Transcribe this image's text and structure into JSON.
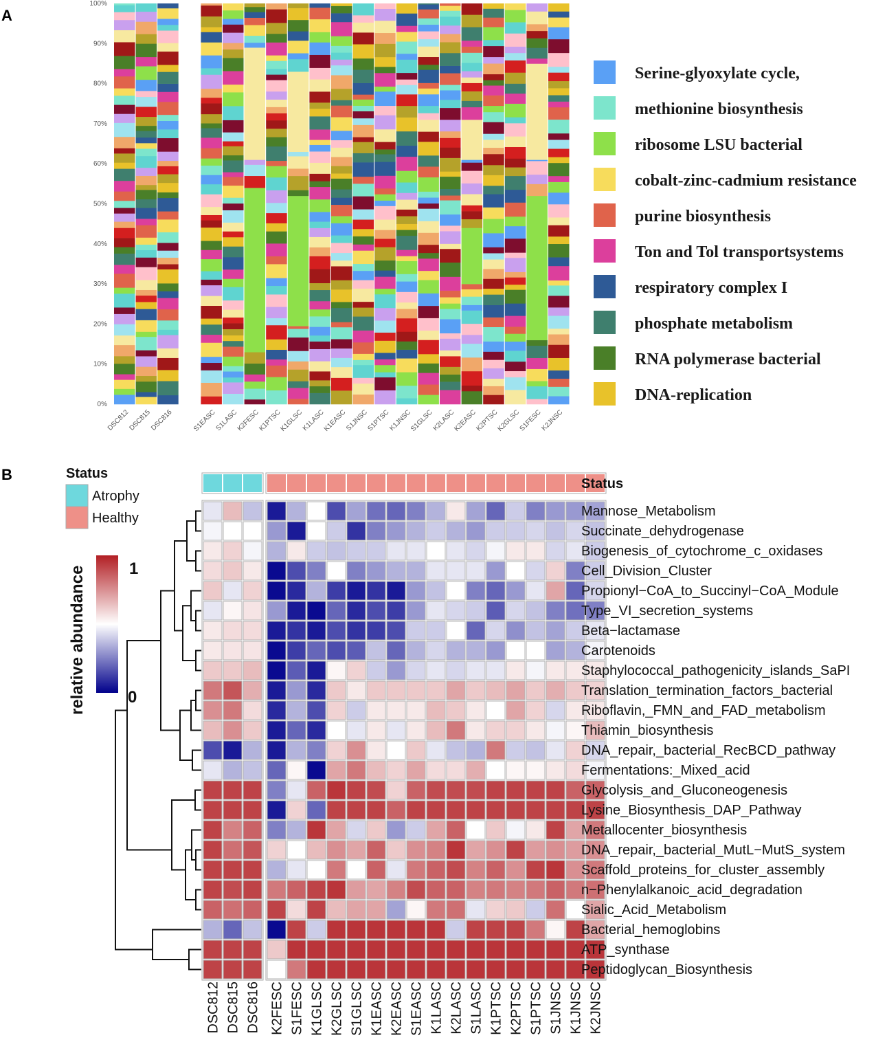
{
  "chart_data": [
    {
      "type": "bar",
      "panel_label": "A",
      "stacked": true,
      "ylim": [
        0,
        100
      ],
      "yticks": [
        "0%",
        "10%",
        "20%",
        "30%",
        "40%",
        "50%",
        "60%",
        "70%",
        "80%",
        "90%",
        "100%"
      ],
      "categories": [
        "DSC812",
        "DSC815",
        "DSC816",
        "",
        "S1EASC",
        "S1LASC",
        "K2FESC",
        "K1PTSC",
        "K1GLSC",
        "K1LASC",
        "K1EASC",
        "S1JNSC",
        "S1PTSC",
        "K1JNSC",
        "S1GLSC",
        "K2LASC",
        "K2EASC",
        "K2PTSC",
        "K2GLSC",
        "S1FESC",
        "K2JNSC"
      ],
      "legend": [
        {
          "label": "Serine-glyoxylate cycle,",
          "color": "#5aa0f5"
        },
        {
          "label": "methionine biosynthesis",
          "color": "#7de5cc"
        },
        {
          "label": "ribosome LSU bacterial",
          "color": "#8ee04a"
        },
        {
          "label": "cobalt-zinc-cadmium resistance",
          "color": "#f7dc5c"
        },
        {
          "label": "purine biosynthesis",
          "color": "#e0634b"
        },
        {
          "label": "Ton and Tol transportsystems",
          "color": "#dc3f9c"
        },
        {
          "label": "respiratory complex I",
          "color": "#2e5a96"
        },
        {
          "label": "phosphate metabolism",
          "color": "#3f7f6e"
        },
        {
          "label": "RNA polymerase bacterial",
          "color": "#4a7f28"
        },
        {
          "label": "DNA-replication",
          "color": "#e8c22a"
        }
      ],
      "palette": [
        "#5aa0f5",
        "#7de5cc",
        "#8ee04a",
        "#f7dc5c",
        "#e0634b",
        "#dc3f9c",
        "#2e5a96",
        "#3f7f6e",
        "#4a7f28",
        "#e8c22a",
        "#b5a22a",
        "#a01818",
        "#d41f1f",
        "#f0a86a",
        "#f7e9a0",
        "#9fe3ef",
        "#c9a0ee",
        "#ffc0cb",
        "#7e0d2e",
        "#5fd4d0"
      ],
      "big_segments": [
        {
          "sample": "K2FESC",
          "color": "#8ee04a",
          "from": 13,
          "to": 54
        },
        {
          "sample": "K2FESC",
          "color": "#f7e9a0",
          "from": 61,
          "to": 89
        },
        {
          "sample": "K1GLSC",
          "color": "#8ee04a",
          "from": 19.5,
          "to": 52
        },
        {
          "sample": "K1GLSC",
          "color": "#f7e9a0",
          "from": 63,
          "to": 83
        },
        {
          "sample": "S1FESC",
          "color": "#8ee04a",
          "from": 16,
          "to": 52
        },
        {
          "sample": "S1FESC",
          "color": "#f7e9a0",
          "from": 61,
          "to": 85
        },
        {
          "sample": "K2EASC",
          "color": "#8ee04a",
          "from": 30,
          "to": 44
        },
        {
          "sample": "K2EASC",
          "color": "#f7e9a0",
          "from": 61,
          "to": 71
        }
      ]
    },
    {
      "type": "heatmap",
      "panel_label": "B",
      "status_title": "Status",
      "status_legend": [
        {
          "label": "Atrophy",
          "color": "#6ed8dd"
        },
        {
          "label": "Healthy",
          "color": "#ee9088"
        }
      ],
      "colorbar": {
        "title": "relative abundance",
        "max_label": "1",
        "min_label": "0",
        "low_color": "#00008b",
        "mid_color": "#ffffff",
        "high_color": "#b21f24"
      },
      "columns": [
        "DSC812",
        "DSC815",
        "DSC816",
        "K2FESC",
        "S1FESC",
        "K1GLSC",
        "K2GLSC",
        "S1GLSC",
        "K1EASC",
        "K2EASC",
        "S1EASC",
        "K1LASC",
        "K2LASC",
        "S1LASC",
        "K1PTSC",
        "K2PTSC",
        "S1PTSC",
        "S1JNSC",
        "K1JNSC",
        "K2JNSC"
      ],
      "atrophy_count": 3,
      "rows": [
        "Mannose_Metabolism",
        "Succinate_dehydrogenase",
        "Biogenesis_of_cytochrome_c_oxidases",
        "Cell_Division_Cluster",
        "Propionyl−CoA_to_Succinyl−CoA_Module",
        "Type_VI_secretion_systems",
        "Beta−lactamase",
        "Carotenoids",
        "Staphylococcal_pathogenicity_islands_SaPI",
        "Translation_termination_factors_bacterial",
        "Riboflavin,_FMN_and_FAD_metabolism",
        "Thiamin_biosynthesis",
        "DNA_repair,_bacterial_RecBCD_pathway",
        "Fermentations:_Mixed_acid",
        "Glycolysis_and_Gluconeogenesis",
        "Lysine_Biosynthesis_DAP_Pathway",
        "Metallocenter_biosynthesis",
        "DNA_repair,_bacterial_MutL−MutS_system",
        "Scaffold_proteins_for_cluster_assembly",
        "n−Phenylalkanoic_acid_degradation",
        "Sialic_Acid_Metabolism",
        "Bacterial_hemoglobins",
        "ATP_synthase",
        "Peptidoglycan_Biosynthesis"
      ],
      "values": [
        [
          0.45,
          0.65,
          0.38,
          0.05,
          0.35,
          0.5,
          0.15,
          0.32,
          0.22,
          0.2,
          0.25,
          0.35,
          0.55,
          0.32,
          0.2,
          0.4,
          0.25,
          0.3,
          0.3,
          0.32
        ],
        [
          0.48,
          0.5,
          0.5,
          0.3,
          0.05,
          0.5,
          0.4,
          0.1,
          0.25,
          0.3,
          0.35,
          0.4,
          0.35,
          0.3,
          0.4,
          0.4,
          0.42,
          0.38,
          0.42,
          0.38
        ],
        [
          0.55,
          0.6,
          0.48,
          0.35,
          0.55,
          0.4,
          0.38,
          0.4,
          0.4,
          0.45,
          0.45,
          0.5,
          0.45,
          0.42,
          0.48,
          0.55,
          0.55,
          0.42,
          0.45,
          0.4
        ],
        [
          0.58,
          0.62,
          0.55,
          0.02,
          0.15,
          0.25,
          0.5,
          0.25,
          0.3,
          0.35,
          0.35,
          0.45,
          0.45,
          0.45,
          0.3,
          0.5,
          0.42,
          0.6,
          0.25,
          0.4
        ],
        [
          0.62,
          0.45,
          0.6,
          0.02,
          0.08,
          0.35,
          0.12,
          0.05,
          0.1,
          0.05,
          0.3,
          0.38,
          0.5,
          0.25,
          0.2,
          0.3,
          0.45,
          0.7,
          0.2,
          0.42
        ],
        [
          0.45,
          0.52,
          0.56,
          0.3,
          0.05,
          0.02,
          0.2,
          0.08,
          0.15,
          0.12,
          0.3,
          0.45,
          0.42,
          0.4,
          0.18,
          0.42,
          0.38,
          0.25,
          0.22,
          0.25
        ],
        [
          0.55,
          0.58,
          0.58,
          0.05,
          0.1,
          0.05,
          0.15,
          0.1,
          0.12,
          0.15,
          0.4,
          0.4,
          0.5,
          0.2,
          0.42,
          0.28,
          0.38,
          0.32,
          0.4,
          0.45
        ],
        [
          0.55,
          0.56,
          0.56,
          0.02,
          0.12,
          0.2,
          0.15,
          0.18,
          0.38,
          0.2,
          0.35,
          0.42,
          0.35,
          0.35,
          0.3,
          0.5,
          0.5,
          0.32,
          0.35,
          0.48
        ],
        [
          0.62,
          0.62,
          0.65,
          0.02,
          0.18,
          0.05,
          0.52,
          0.6,
          0.4,
          0.3,
          0.42,
          0.45,
          0.42,
          0.45,
          0.45,
          0.55,
          0.48,
          0.55,
          0.55,
          0.55
        ],
        [
          0.8,
          0.88,
          0.68,
          0.05,
          0.3,
          0.08,
          0.62,
          0.55,
          0.62,
          0.62,
          0.62,
          0.62,
          0.7,
          0.62,
          0.65,
          0.7,
          0.62,
          0.68,
          0.62,
          0.6
        ],
        [
          0.75,
          0.8,
          0.58,
          0.08,
          0.35,
          0.15,
          0.6,
          0.4,
          0.55,
          0.55,
          0.55,
          0.65,
          0.62,
          0.55,
          0.5,
          0.7,
          0.6,
          0.42,
          0.55,
          0.55
        ],
        [
          0.65,
          0.75,
          0.62,
          0.05,
          0.2,
          0.08,
          0.5,
          0.45,
          0.55,
          0.45,
          0.55,
          0.65,
          0.8,
          0.55,
          0.6,
          0.6,
          0.55,
          0.48,
          0.52,
          0.65
        ],
        [
          0.15,
          0.05,
          0.35,
          0.05,
          0.35,
          0.25,
          0.6,
          0.75,
          0.55,
          0.5,
          0.62,
          0.45,
          0.38,
          0.35,
          0.8,
          0.4,
          0.38,
          0.45,
          0.6,
          0.42
        ],
        [
          0.45,
          0.35,
          0.38,
          0.2,
          0.52,
          0.02,
          0.7,
          0.8,
          0.65,
          0.6,
          0.7,
          0.58,
          0.58,
          0.68,
          0.5,
          0.52,
          0.52,
          0.55,
          0.58,
          0.48
        ],
        [
          0.92,
          0.92,
          0.92,
          0.25,
          0.45,
          0.85,
          0.95,
          0.92,
          0.9,
          0.6,
          0.85,
          0.9,
          0.9,
          0.9,
          0.92,
          0.92,
          0.92,
          0.92,
          0.85,
          0.85
        ],
        [
          0.92,
          0.92,
          0.92,
          0.05,
          0.6,
          0.2,
          0.92,
          0.92,
          0.92,
          0.85,
          0.92,
          0.92,
          0.92,
          0.92,
          0.92,
          0.92,
          0.92,
          0.92,
          0.92,
          0.92
        ],
        [
          0.92,
          0.78,
          0.85,
          0.25,
          0.35,
          0.95,
          0.7,
          0.42,
          0.62,
          0.3,
          0.4,
          0.7,
          0.85,
          0.5,
          0.62,
          0.48,
          0.55,
          0.92,
          0.7,
          0.8
        ],
        [
          0.92,
          0.82,
          0.88,
          0.6,
          0.5,
          0.65,
          0.75,
          0.7,
          0.85,
          0.62,
          0.75,
          0.78,
          0.95,
          0.7,
          0.75,
          0.92,
          0.72,
          0.75,
          0.72,
          0.75
        ],
        [
          0.92,
          0.92,
          0.92,
          0.35,
          0.45,
          0.5,
          0.8,
          0.5,
          0.85,
          0.45,
          0.8,
          0.85,
          0.9,
          0.78,
          0.85,
          0.75,
          0.92,
          0.95,
          0.75,
          0.8
        ],
        [
          0.92,
          0.9,
          0.92,
          0.8,
          0.85,
          0.92,
          0.95,
          0.72,
          0.7,
          0.78,
          0.9,
          0.85,
          0.85,
          0.78,
          0.8,
          0.78,
          0.8,
          0.85,
          0.8,
          0.82
        ],
        [
          0.85,
          0.82,
          0.85,
          0.92,
          0.58,
          0.92,
          0.65,
          0.7,
          0.7,
          0.32,
          0.52,
          0.8,
          0.82,
          0.45,
          0.6,
          0.62,
          0.4,
          0.82,
          0.5,
          0.7
        ],
        [
          0.35,
          0.2,
          0.38,
          0.02,
          0.92,
          0.4,
          0.95,
          0.95,
          0.95,
          0.95,
          0.95,
          0.95,
          0.4,
          0.92,
          0.92,
          0.92,
          0.8,
          0.52,
          0.92,
          0.7
        ],
        [
          0.92,
          0.92,
          0.92,
          0.62,
          0.95,
          0.95,
          0.95,
          0.95,
          0.95,
          0.95,
          0.95,
          0.95,
          0.95,
          0.95,
          0.95,
          0.95,
          0.95,
          0.95,
          0.95,
          0.95
        ],
        [
          0.92,
          0.92,
          0.92,
          0.5,
          0.8,
          0.95,
          0.95,
          0.95,
          0.95,
          0.95,
          0.95,
          0.95,
          0.95,
          0.95,
          0.95,
          0.95,
          0.95,
          0.95,
          0.95,
          0.95
        ]
      ],
      "column_label_right": "Status"
    }
  ]
}
